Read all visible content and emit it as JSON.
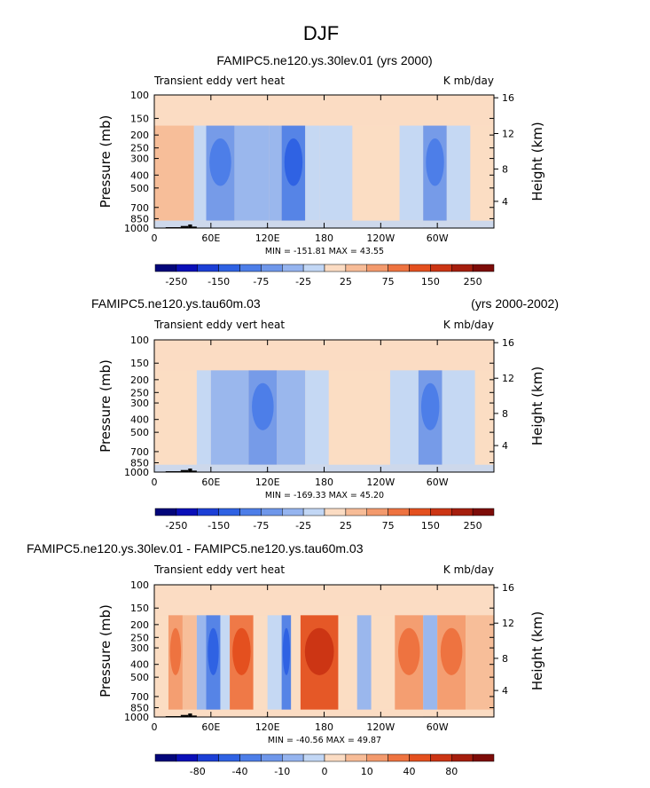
{
  "figure": {
    "title": "DJF",
    "colors": {
      "diverging_16": [
        "#03067a",
        "#0a0fb8",
        "#1c3fd6",
        "#2f62e3",
        "#4d7ee8",
        "#6f97ea",
        "#95b4ef",
        "#c2d7f5",
        "#fbdcc3",
        "#f7bc97",
        "#f39a6d",
        "#ee7340",
        "#e4501f",
        "#cc3514",
        "#a51e0d",
        "#7d0c08"
      ],
      "land": "#000000"
    }
  },
  "chart_data": [
    {
      "type": "heatmap",
      "title_left": "FAMIPC5.ne120.ys.30lev.01 (yrs 2000)",
      "title_right": "",
      "subtitle_left": "Transient eddy vert heat",
      "subtitle_right": "K mb/day",
      "ylabel": "Pressure (mb)",
      "ylabel_right": "Height (km)",
      "y_ticks": [
        "100",
        "150",
        "200",
        "250",
        "300",
        "400",
        "500",
        "700",
        "850",
        "1000"
      ],
      "y_right_ticks": [
        "16",
        "12",
        "8",
        "4"
      ],
      "x_ticks": [
        "0",
        "60E",
        "120E",
        "180",
        "120W",
        "60W"
      ],
      "min_max_text": "MIN = -151.81   MAX =  43.55",
      "colorbar_labels": [
        "-250",
        "-150",
        "-75",
        "-25",
        "25",
        "75",
        "150",
        "250"
      ],
      "bands": [
        {
          "x": [
            0,
            42
          ],
          "level": 2
        },
        {
          "x": [
            42,
            55
          ],
          "level": -1
        },
        {
          "x": [
            55,
            85
          ],
          "level": -3
        },
        {
          "x": [
            85,
            122
          ],
          "level": -2
        },
        {
          "x": [
            122,
            135
          ],
          "level": -2
        },
        {
          "x": [
            135,
            160
          ],
          "level": -4
        },
        {
          "x": [
            160,
            175
          ],
          "level": -1
        },
        {
          "x": [
            175,
            210
          ],
          "level": -1
        },
        {
          "x": [
            210,
            260
          ],
          "level": 1
        },
        {
          "x": [
            260,
            285
          ],
          "level": -1
        },
        {
          "x": [
            285,
            310
          ],
          "level": -3
        },
        {
          "x": [
            310,
            335
          ],
          "level": -1
        },
        {
          "x": [
            335,
            360
          ],
          "level": 1
        }
      ]
    },
    {
      "type": "heatmap",
      "title_left": "FAMIPC5.ne120.ys.tau60m.03",
      "title_right": "(yrs 2000-2002)",
      "subtitle_left": "Transient eddy vert heat",
      "subtitle_right": "K mb/day",
      "ylabel": "Pressure (mb)",
      "ylabel_right": "Height (km)",
      "y_ticks": [
        "100",
        "150",
        "200",
        "250",
        "300",
        "400",
        "500",
        "700",
        "850",
        "1000"
      ],
      "y_right_ticks": [
        "16",
        "12",
        "8",
        "4"
      ],
      "x_ticks": [
        "0",
        "60E",
        "120E",
        "180",
        "120W",
        "60W"
      ],
      "min_max_text": "MIN = -169.33   MAX =  45.20",
      "colorbar_labels": [
        "-250",
        "-150",
        "-75",
        "-25",
        "25",
        "75",
        "150",
        "250"
      ],
      "bands": [
        {
          "x": [
            0,
            45
          ],
          "level": 1
        },
        {
          "x": [
            45,
            60
          ],
          "level": -1
        },
        {
          "x": [
            60,
            100
          ],
          "level": -2
        },
        {
          "x": [
            100,
            130
          ],
          "level": -3
        },
        {
          "x": [
            130,
            160
          ],
          "level": -2
        },
        {
          "x": [
            160,
            185
          ],
          "level": -1
        },
        {
          "x": [
            185,
            250
          ],
          "level": 1
        },
        {
          "x": [
            250,
            280
          ],
          "level": -1
        },
        {
          "x": [
            280,
            305
          ],
          "level": -3
        },
        {
          "x": [
            305,
            340
          ],
          "level": -1
        },
        {
          "x": [
            340,
            360
          ],
          "level": 1
        }
      ]
    },
    {
      "type": "heatmap",
      "title_left": "FAMIPC5.ne120.ys.30lev.01 - FAMIPC5.ne120.ys.tau60m.03",
      "title_right": "",
      "subtitle_left": "Transient eddy vert heat",
      "subtitle_right": "K mb/day",
      "ylabel": "Pressure (mb)",
      "ylabel_right": "Height (km)",
      "y_ticks": [
        "100",
        "150",
        "200",
        "250",
        "300",
        "400",
        "500",
        "700",
        "850",
        "1000"
      ],
      "y_right_ticks": [
        "16",
        "12",
        "8",
        "4"
      ],
      "x_ticks": [
        "0",
        "60E",
        "120E",
        "180",
        "120W",
        "60W"
      ],
      "min_max_text": "MIN = -40.56   MAX =  49.87",
      "colorbar_labels": [
        "-80",
        "-40",
        "-10",
        "0",
        "10",
        "40",
        "80"
      ],
      "bands": [
        {
          "x": [
            0,
            15
          ],
          "level": 1
        },
        {
          "x": [
            15,
            30
          ],
          "level": 3
        },
        {
          "x": [
            30,
            45
          ],
          "level": 2
        },
        {
          "x": [
            45,
            55
          ],
          "level": -2
        },
        {
          "x": [
            55,
            70
          ],
          "level": -4
        },
        {
          "x": [
            70,
            80
          ],
          "level": -1
        },
        {
          "x": [
            80,
            105
          ],
          "level": 4
        },
        {
          "x": [
            105,
            120
          ],
          "level": 1
        },
        {
          "x": [
            120,
            135
          ],
          "level": -1
        },
        {
          "x": [
            135,
            145
          ],
          "level": -4
        },
        {
          "x": [
            145,
            155
          ],
          "level": 1
        },
        {
          "x": [
            155,
            195
          ],
          "level": 5
        },
        {
          "x": [
            195,
            215
          ],
          "level": 1
        },
        {
          "x": [
            215,
            230
          ],
          "level": -2
        },
        {
          "x": [
            230,
            255
          ],
          "level": 1
        },
        {
          "x": [
            255,
            285
          ],
          "level": 3
        },
        {
          "x": [
            285,
            300
          ],
          "level": -2
        },
        {
          "x": [
            300,
            330
          ],
          "level": 3
        },
        {
          "x": [
            330,
            360
          ],
          "level": 2
        }
      ]
    }
  ]
}
